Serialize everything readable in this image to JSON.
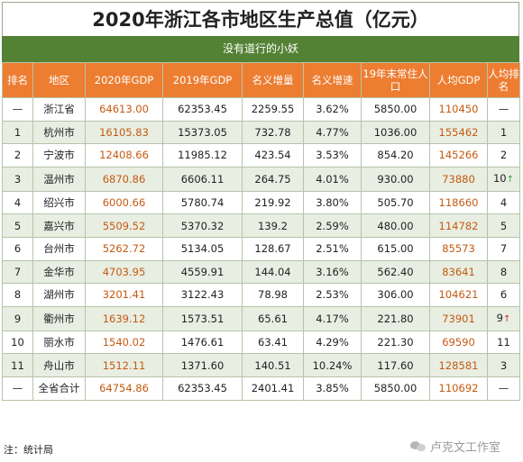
{
  "title": "2020年浙江各市地区生产总值（亿元）",
  "subtitle": "没有道行的小妖",
  "columns": [
    "排名",
    "地区",
    "2020年GDP",
    "2019年GDP",
    "名义增量",
    "名义增速",
    "19年末常住人口",
    "人均GDP",
    "人均排名"
  ],
  "rows": [
    {
      "rank": "—",
      "region": "浙江省",
      "gdp2020": "64613.00",
      "gdp2019": "62353.45",
      "increase": "2259.55",
      "growth": "3.62%",
      "population": "5850.00",
      "per_capita": "110450",
      "pc_rank": "—",
      "pc_arrow": ""
    },
    {
      "rank": "1",
      "region": "杭州市",
      "gdp2020": "16105.83",
      "gdp2019": "15373.05",
      "increase": "732.78",
      "growth": "4.77%",
      "population": "1036.00",
      "per_capita": "155462",
      "pc_rank": "1",
      "pc_arrow": ""
    },
    {
      "rank": "2",
      "region": "宁波市",
      "gdp2020": "12408.66",
      "gdp2019": "11985.12",
      "increase": "423.54",
      "growth": "3.53%",
      "population": "854.20",
      "per_capita": "145266",
      "pc_rank": "2",
      "pc_arrow": ""
    },
    {
      "rank": "3",
      "region": "温州市",
      "gdp2020": "6870.86",
      "gdp2019": "6606.11",
      "increase": "264.75",
      "growth": "4.01%",
      "population": "930.00",
      "per_capita": "73880",
      "pc_rank": "10",
      "pc_arrow": "green"
    },
    {
      "rank": "4",
      "region": "绍兴市",
      "gdp2020": "6000.66",
      "gdp2019": "5780.74",
      "increase": "219.92",
      "growth": "3.80%",
      "population": "505.70",
      "per_capita": "118660",
      "pc_rank": "4",
      "pc_arrow": ""
    },
    {
      "rank": "5",
      "region": "嘉兴市",
      "gdp2020": "5509.52",
      "gdp2019": "5370.32",
      "increase": "139.2",
      "growth": "2.59%",
      "population": "480.00",
      "per_capita": "114782",
      "pc_rank": "5",
      "pc_arrow": ""
    },
    {
      "rank": "6",
      "region": "台州市",
      "gdp2020": "5262.72",
      "gdp2019": "5134.05",
      "increase": "128.67",
      "growth": "2.51%",
      "population": "615.00",
      "per_capita": "85573",
      "pc_rank": "7",
      "pc_arrow": ""
    },
    {
      "rank": "7",
      "region": "金华市",
      "gdp2020": "4703.95",
      "gdp2019": "4559.91",
      "increase": "144.04",
      "growth": "3.16%",
      "population": "562.40",
      "per_capita": "83641",
      "pc_rank": "8",
      "pc_arrow": ""
    },
    {
      "rank": "8",
      "region": "湖州市",
      "gdp2020": "3201.41",
      "gdp2019": "3122.43",
      "increase": "78.98",
      "growth": "2.53%",
      "population": "306.00",
      "per_capita": "104621",
      "pc_rank": "6",
      "pc_arrow": ""
    },
    {
      "rank": "9",
      "region": "衢州市",
      "gdp2020": "1639.12",
      "gdp2019": "1573.51",
      "increase": "65.61",
      "growth": "4.17%",
      "population": "221.80",
      "per_capita": "73901",
      "pc_rank": "9",
      "pc_arrow": "red"
    },
    {
      "rank": "10",
      "region": "丽水市",
      "gdp2020": "1540.02",
      "gdp2019": "1476.61",
      "increase": "63.41",
      "growth": "4.29%",
      "population": "221.30",
      "per_capita": "69590",
      "pc_rank": "11",
      "pc_arrow": ""
    },
    {
      "rank": "11",
      "region": "舟山市",
      "gdp2020": "1512.11",
      "gdp2019": "1371.60",
      "increase": "140.51",
      "growth": "10.24%",
      "population": "117.60",
      "per_capita": "128581",
      "pc_rank": "3",
      "pc_arrow": ""
    },
    {
      "rank": "—",
      "region": "全省合计",
      "gdp2020": "64754.86",
      "gdp2019": "62353.45",
      "increase": "2401.41",
      "growth": "3.85%",
      "population": "5850.00",
      "per_capita": "110692",
      "pc_rank": "—",
      "pc_arrow": ""
    }
  ],
  "arrow_glyph": "↑",
  "footer_note": "注：统计局",
  "watermark": "卢克文工作室",
  "colors": {
    "header_bg": "#ed7d31",
    "subtitle_bg": "#548235",
    "gdp_text": "#c55a11",
    "arrow_green": "#3a9a3a",
    "arrow_red": "#d32f2f"
  }
}
